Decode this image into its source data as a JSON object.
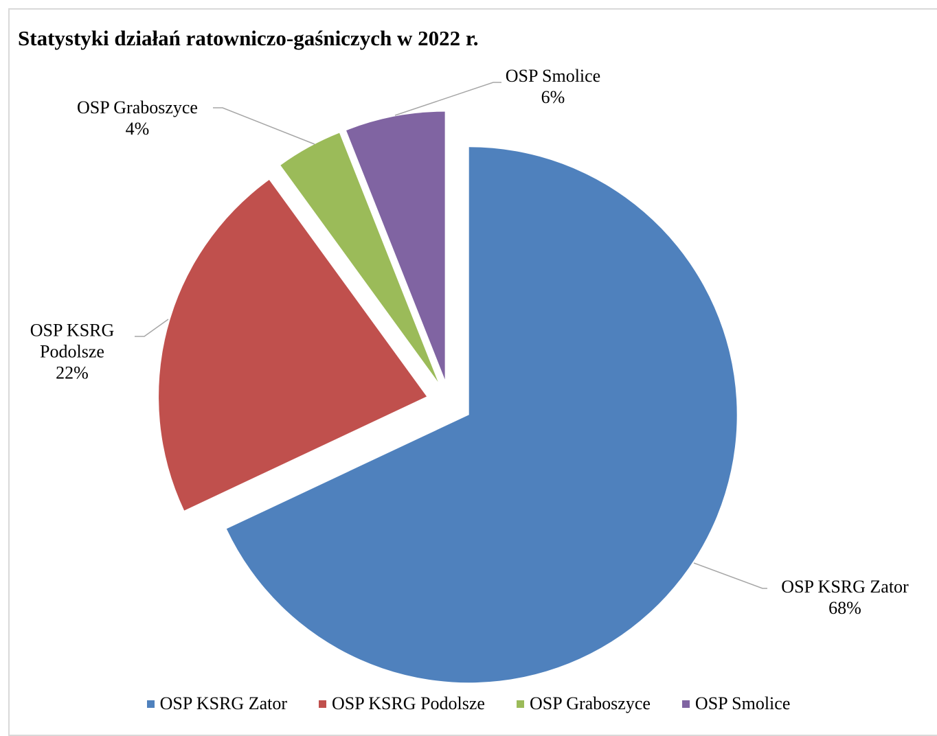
{
  "chart_data": {
    "type": "pie",
    "title": "Statystyki działań ratowniczo-gaśniczych w 2022 r.",
    "categories": [
      "OSP KSRG Zator",
      "OSP KSRG Podolsze",
      "OSP Graboszyce",
      "OSP Smolice"
    ],
    "values": [
      68,
      22,
      4,
      6
    ],
    "value_labels": [
      "68%",
      "22%",
      "4%",
      "6%"
    ],
    "colors": [
      "#4f81bd",
      "#c0504d",
      "#9bbb59",
      "#8064a2"
    ],
    "legend": "bottom"
  }
}
